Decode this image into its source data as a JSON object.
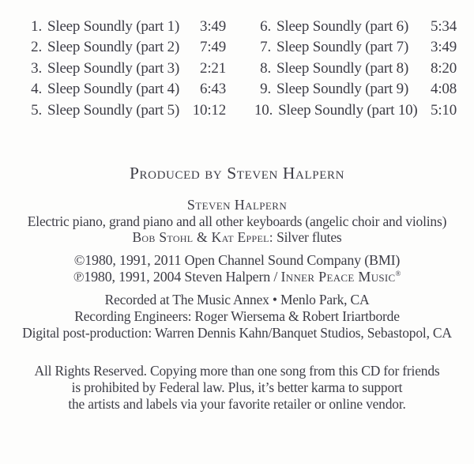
{
  "theme": {
    "background": "#fdfdfc",
    "text_color": "#3d3d46"
  },
  "tracklist": {
    "left": [
      {
        "num": "1.",
        "title": "Sleep Soundly (part 1)",
        "time": "3:49"
      },
      {
        "num": "2.",
        "title": "Sleep Soundly (part 2)",
        "time": "7:49"
      },
      {
        "num": "3.",
        "title": "Sleep Soundly (part 3)",
        "time": "2:21"
      },
      {
        "num": "4.",
        "title": "Sleep Soundly (part 4)",
        "time": "6:43"
      },
      {
        "num": "5.",
        "title": "Sleep Soundly (part 5)",
        "time": "10:12"
      }
    ],
    "right": [
      {
        "num": "6.",
        "title": "Sleep Soundly (part 6)",
        "time": "5:34"
      },
      {
        "num": "7.",
        "title": "Sleep Soundly (part 7)",
        "time": "3:49"
      },
      {
        "num": "8.",
        "title": "Sleep Soundly (part 8)",
        "time": "8:20"
      },
      {
        "num": "9.",
        "title": "Sleep Soundly (part 9)",
        "time": "4:08"
      },
      {
        "num": "10.",
        "title": "Sleep Soundly (part 10)",
        "time": "5:10"
      }
    ]
  },
  "producer_line": "Produced by Steven Halpern",
  "credits": {
    "artist": "Steven Halpern",
    "instruments": "Electric piano, grand piano and all other keyboards (angelic choir and violins)",
    "flutes_names": "Bob Stohl & Kat Eppel:",
    "flutes_role": " Silver flutes"
  },
  "copyright": {
    "line1": "©1980, 1991, 2011 Open Channel Sound Company (BMI)",
    "line2_prefix": "℗1980, 1991, 2004 Steven Halpern / ",
    "line2_label": "Inner Peace Music",
    "line2_mark": "®"
  },
  "recording": {
    "line1": "Recorded at The Music Annex • Menlo Park, CA",
    "line2": "Recording Engineers: Roger Wiersema & Robert Iriartborde",
    "line3": "Digital post-production: Warren Dennis Kahn/Banquet Studios, Sebastopol, CA"
  },
  "rights": {
    "line1": "All Rights Reserved. Copying more than one song from this CD for friends",
    "line2": "is prohibited by Federal law. Plus, it’s better karma to support",
    "line3": "the artists and labels via your favorite retailer or online vendor."
  }
}
